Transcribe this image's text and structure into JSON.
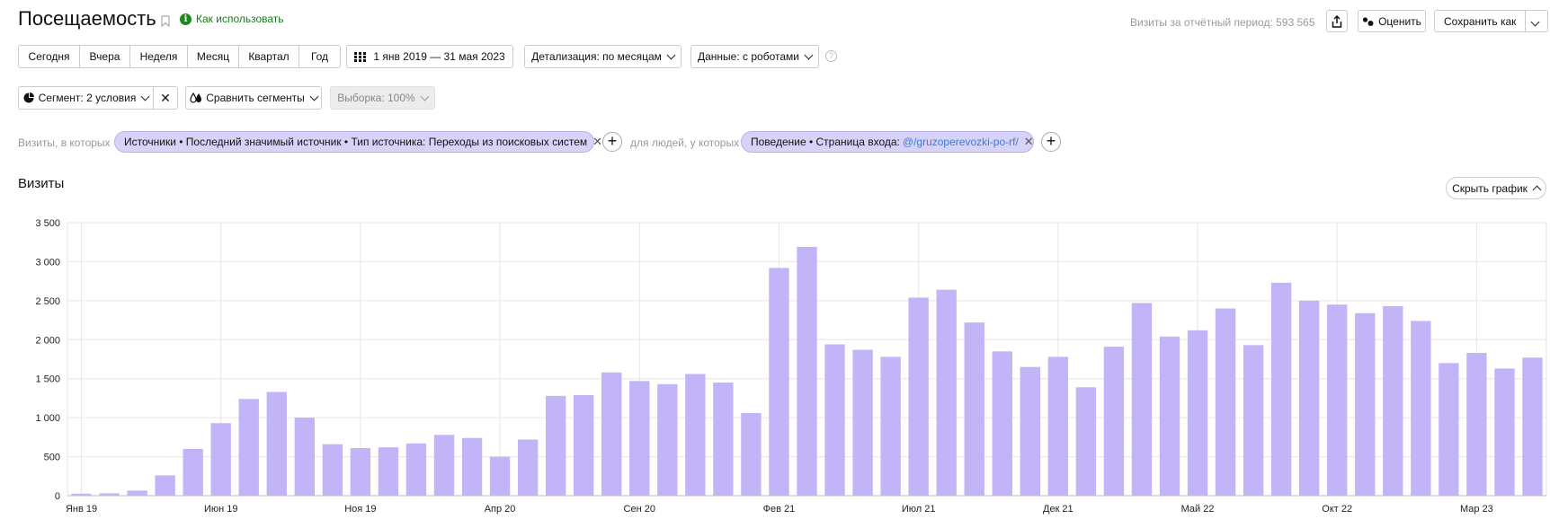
{
  "header": {
    "title": "Посещаемость",
    "how_to_use": "Как использовать",
    "total_label": "Визиты за отчётный период: 593 565",
    "rate_label": "Оценить",
    "save_as_label": "Сохранить как"
  },
  "periods": [
    "Сегодня",
    "Вчера",
    "Неделя",
    "Месяц",
    "Квартал",
    "Год"
  ],
  "date_range": "1 янв 2019 — 31 мая 2023",
  "detail": "Детализация: по месяцам",
  "data_mode": "Данные: с роботами",
  "segment": {
    "label": "Сегмент: 2 условия",
    "compare_label": "Сравнить сегменты",
    "sample_label": "Выборка: 100%"
  },
  "filters": {
    "visits_where": "Визиты, в которых",
    "chip1": "Источники • Последний значимый источник • Тип источника: Переходы из поисковых систем",
    "people_where": "для людей, у которых",
    "chip2_prefix": "Поведение • Страница входа:",
    "chip2_link": "@/gruzoperevozki-po-rf/"
  },
  "section_title": "Визиты",
  "hide_chart_label": "Скрыть график",
  "chart_data": {
    "type": "bar",
    "ylabel": "",
    "xlabel": "",
    "ylim": [
      0,
      3500
    ],
    "y_ticks": [
      "0",
      "500",
      "1 000",
      "1 500",
      "2 000",
      "2 500",
      "3 000",
      "3 500"
    ],
    "x_tick_labels": [
      {
        "index": 0,
        "label": "Янв 19"
      },
      {
        "index": 5,
        "label": "Июн 19"
      },
      {
        "index": 10,
        "label": "Ноя 19"
      },
      {
        "index": 15,
        "label": "Апр 20"
      },
      {
        "index": 20,
        "label": "Сен 20"
      },
      {
        "index": 25,
        "label": "Фев 21"
      },
      {
        "index": 30,
        "label": "Июл 21"
      },
      {
        "index": 35,
        "label": "Дек 21"
      },
      {
        "index": 40,
        "label": "Май 22"
      },
      {
        "index": 45,
        "label": "Окт 22"
      },
      {
        "index": 50,
        "label": "Мар 23"
      }
    ],
    "values": [
      25,
      30,
      65,
      260,
      600,
      930,
      1240,
      1330,
      1000,
      660,
      610,
      620,
      670,
      780,
      740,
      500,
      720,
      1280,
      1290,
      1580,
      1470,
      1430,
      1560,
      1450,
      1060,
      2920,
      3190,
      1940,
      1870,
      1780,
      2540,
      2640,
      2220,
      1850,
      1650,
      1780,
      1390,
      1910,
      2470,
      2040,
      2120,
      2400,
      1930,
      2730,
      2500,
      2450,
      2340,
      2430,
      2240,
      1700,
      1830,
      1630,
      1770
    ],
    "grid": true,
    "bar_color": "#c3b3f7"
  }
}
